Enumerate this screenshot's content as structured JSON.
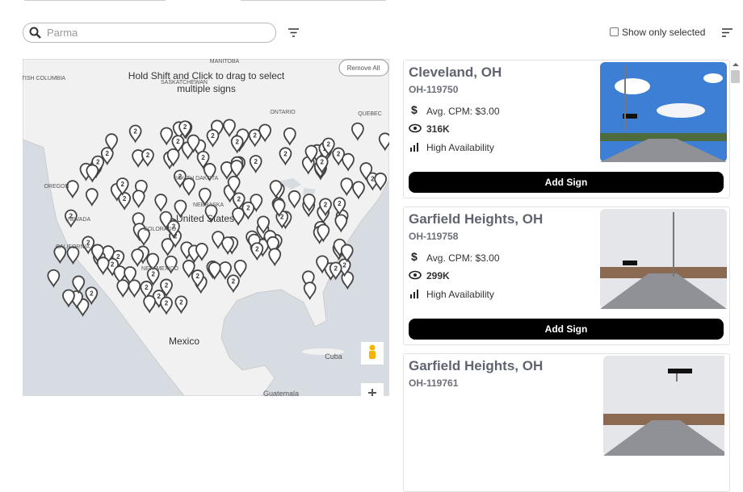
{
  "toolbar": {
    "search_placeholder": "Parma",
    "show_only_selected": "Show only selected"
  },
  "map": {
    "remove_all": "Remove All",
    "hint": "Hold Shift and Click to drag to select multiple signs",
    "labels": [
      "BRITISH COLUMBIA",
      "MANITOBA",
      "SASKATCHEWAN",
      "ONTARIO",
      "QUEBEC",
      "OREGON",
      "SOUTH DAKOTA",
      "NEBRASKA",
      "NEVADA",
      "CALIFORNIA",
      "United States",
      "COLORADO",
      "NEW MEXICO",
      "Mexico",
      "Cuba",
      "Guatemala"
    ]
  },
  "signs": [
    {
      "city": "Cleveland, OH",
      "id": "OH-119750",
      "cpm": "Avg. CPM: $3.00",
      "impressions": "316K",
      "availability": "High Availability",
      "button": "Add Sign"
    },
    {
      "city": "Garfield Heights, OH",
      "id": "OH-119758",
      "cpm": "Avg. CPM: $3.00",
      "impressions": "299K",
      "availability": "High Availability",
      "button": "Add Sign"
    },
    {
      "city": "Garfield Heights, OH",
      "id": "OH-119761"
    }
  ]
}
